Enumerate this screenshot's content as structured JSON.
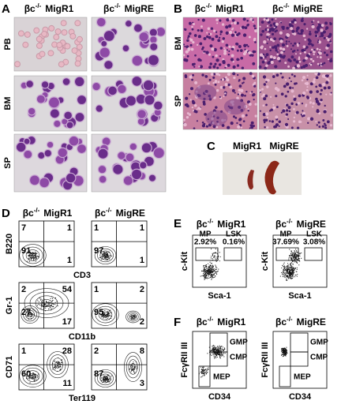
{
  "genotype": {
    "base": "βc",
    "sup": "-/-"
  },
  "groups": [
    "MigR1",
    "MigRE"
  ],
  "panel_a": {
    "label": "A",
    "rows": [
      "PB",
      "BM",
      "SP"
    ]
  },
  "panel_b": {
    "label": "B",
    "rows": [
      "BM",
      "SP"
    ]
  },
  "panel_c": {
    "label": "C"
  },
  "panel_d": {
    "label": "D",
    "rows": [
      {
        "y_axis": "B220",
        "x_axis": "CD3",
        "quadrants": [
          [
            "7",
            "1",
            "91",
            "1"
          ],
          [
            "1",
            "1",
            "97",
            "1"
          ]
        ]
      },
      {
        "y_axis": "Gr-1",
        "x_axis": "CD11b",
        "quadrants": [
          [
            "2",
            "54",
            "27",
            "17"
          ],
          [
            "1",
            "2",
            "95",
            "2"
          ]
        ]
      },
      {
        "y_axis": "CD71",
        "x_axis": "Ter119",
        "quadrants": [
          [
            "1",
            "28",
            "60",
            "11"
          ],
          [
            "2",
            "8",
            "87",
            "3"
          ]
        ]
      }
    ]
  },
  "panel_e": {
    "label": "E",
    "y_axis": "c-Kit",
    "x_axis": "Sca-1",
    "gate_names": [
      "MP",
      "LSK"
    ],
    "gate_values": [
      [
        "2.92%",
        "0.16%"
      ],
      [
        "37.69%",
        "3.08%"
      ]
    ]
  },
  "panel_f": {
    "label": "F",
    "y_axis": "FcγRII III",
    "x_axis": "CD34",
    "gates": [
      "GMP",
      "CMP",
      "MEP"
    ]
  }
}
